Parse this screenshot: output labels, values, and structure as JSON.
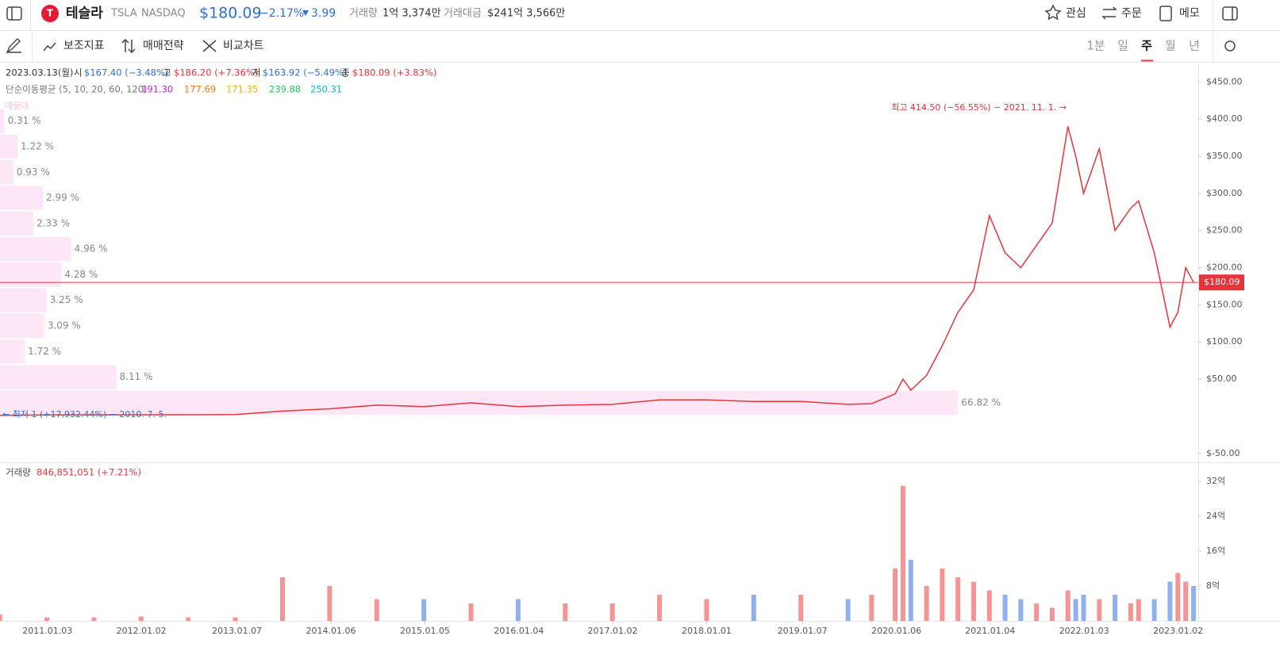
{
  "header": {
    "name": "테슬라",
    "ticker": "TSLA",
    "exchange": "NASDAQ",
    "price": "$180.09",
    "change_pct": "−2.17%",
    "change": "3.99",
    "volume_label": "거래량",
    "volume": "1억 3,374만",
    "amount_label": "거래대금",
    "amount": "$241억 3,566만",
    "actions": [
      "관심",
      "주문",
      "메모"
    ]
  },
  "toolbar": {
    "tools": [
      "보조지표",
      "매매전략",
      "비교차트"
    ],
    "periods": [
      "1분",
      "일",
      "주",
      "월",
      "년"
    ],
    "active_period": "주"
  },
  "chart_data": [
    {
      "type": "line",
      "color": "#e8333b",
      "info": {
        "date": "2023.03.13(월)",
        "open_label": "시",
        "open": "$167.40 (−3.48%)",
        "high_label": "고",
        "high": "$186.20 (+7.36%)",
        "low_label": "저",
        "low": "$163.92 (−5.49%)",
        "close_label": "종",
        "close": "$180.09 (+3.83%)"
      },
      "moving_averages": {
        "label": "단순이동평균 (5, 10, 20, 60, 120)",
        "items": [
          {
            "text": "191.30",
            "color": "#c026d3"
          },
          {
            "text": "177.69",
            "color": "#f97316"
          },
          {
            "text": "171.35",
            "color": "#eab308"
          },
          {
            "text": "239.88",
            "color": "#22c55e"
          },
          {
            "text": "250.31",
            "color": "#06b6d4"
          }
        ]
      },
      "annotations": {
        "high": "최고 414.50 (−56.55%) − 2021. 11. 1. →",
        "low": "← 최저 1 (+17,932.44%) − 2010. 7. 5."
      },
      "current_price": {
        "value": 180.09,
        "label": "$180.09",
        "color": "#e8333b"
      },
      "xlim": [
        "2010.07.05",
        "2023.03.13"
      ],
      "ylim": [
        -62,
        477
      ],
      "yticks": [
        {
          "value": 450,
          "label": "$450.00"
        },
        {
          "value": 400,
          "label": "$400.00"
        },
        {
          "value": 350,
          "label": "$350.00"
        },
        {
          "value": 300,
          "label": "$300.00"
        },
        {
          "value": 250,
          "label": "$250.00"
        },
        {
          "value": 200,
          "label": "$200.00"
        },
        {
          "value": 150,
          "label": "$150.00"
        },
        {
          "value": 100,
          "label": "$100.00"
        },
        {
          "value": 50,
          "label": "$50.00"
        },
        {
          "value": -50,
          "label": "$-50.00"
        }
      ],
      "x": [
        "2010.07",
        "2011.01",
        "2011.07",
        "2012.01",
        "2012.07",
        "2013.01",
        "2013.07",
        "2014.01",
        "2014.07",
        "2015.01",
        "2015.07",
        "2016.01",
        "2016.07",
        "2017.01",
        "2017.07",
        "2018.01",
        "2018.07",
        "2019.01",
        "2019.07",
        "2019.10",
        "2020.01",
        "2020.02",
        "2020.03",
        "2020.05",
        "2020.07",
        "2020.09",
        "2020.11",
        "2021.01",
        "2021.03",
        "2021.05",
        "2021.07",
        "2021.09",
        "2021.11",
        "2021.12",
        "2022.01",
        "2022.03",
        "2022.05",
        "2022.07",
        "2022.08",
        "2022.10",
        "2022.12",
        "2023.01",
        "2023.02",
        "2023.03"
      ],
      "values": [
        1.3,
        1.8,
        1.9,
        1.9,
        2.0,
        2.3,
        7,
        10,
        15,
        13,
        18,
        13,
        15,
        16,
        22,
        22,
        20,
        20,
        16,
        17,
        30,
        50,
        35,
        55,
        95,
        140,
        170,
        270,
        220,
        200,
        230,
        260,
        390,
        350,
        300,
        360,
        250,
        280,
        290,
        220,
        120,
        140,
        200,
        180.09
      ],
      "volume_profile": {
        "title": "매물대",
        "color": "#fde6f6",
        "bins": [
          1,
          35.46,
          69.92,
          104.38,
          138.83,
          173.29,
          207.75,
          242.21,
          276.67,
          311.13,
          345.58,
          380.04,
          414.5
        ],
        "values": [
          66.82,
          8.11,
          1.72,
          3.09,
          3.25,
          4.28,
          4.96,
          2.33,
          2.99,
          0.93,
          1.22,
          0.31
        ],
        "value_labels": [
          "66.82 %",
          "8.11 %",
          "1.72 %",
          "3.09 %",
          "3.25 %",
          "4.28 %",
          "4.96 %",
          "2.33 %",
          "2.99 %",
          "0.93 %",
          "1.22 %",
          "0.31 %"
        ]
      }
    },
    {
      "type": "bar",
      "label": "거래량",
      "value_text": "846,851,051 (+7.21%)",
      "up_color": "#f49494",
      "down_color": "#8fb1ef",
      "xlim": [
        "2010.07.05",
        "2023.03.13"
      ],
      "ylim": [
        0,
        36
      ],
      "yticks": [
        {
          "value": 32,
          "label": "32억"
        },
        {
          "value": 24,
          "label": "24억"
        },
        {
          "value": 16,
          "label": "16억"
        },
        {
          "value": 8,
          "label": "8억"
        }
      ],
      "xticks": [
        "2011.01.03",
        "2012.01.02",
        "2013.01.07",
        "2014.01.06",
        "2015.01.05",
        "2016.01.04",
        "2017.01.02",
        "2018.01.01",
        "2019.01.07",
        "2020.01.06",
        "2021.01.04",
        "2022.01.03",
        "2023.01.02"
      ],
      "values": [
        1.5,
        0.8,
        0.8,
        1,
        0.8,
        0.8,
        10,
        8,
        5,
        5,
        4,
        5,
        4,
        4,
        6,
        5,
        6,
        6,
        5,
        6,
        12,
        31,
        14,
        8,
        12,
        10,
        9,
        7,
        6,
        5,
        4,
        3,
        7,
        5,
        6,
        5,
        6,
        4,
        5,
        5,
        9,
        11,
        9,
        8
      ]
    }
  ]
}
